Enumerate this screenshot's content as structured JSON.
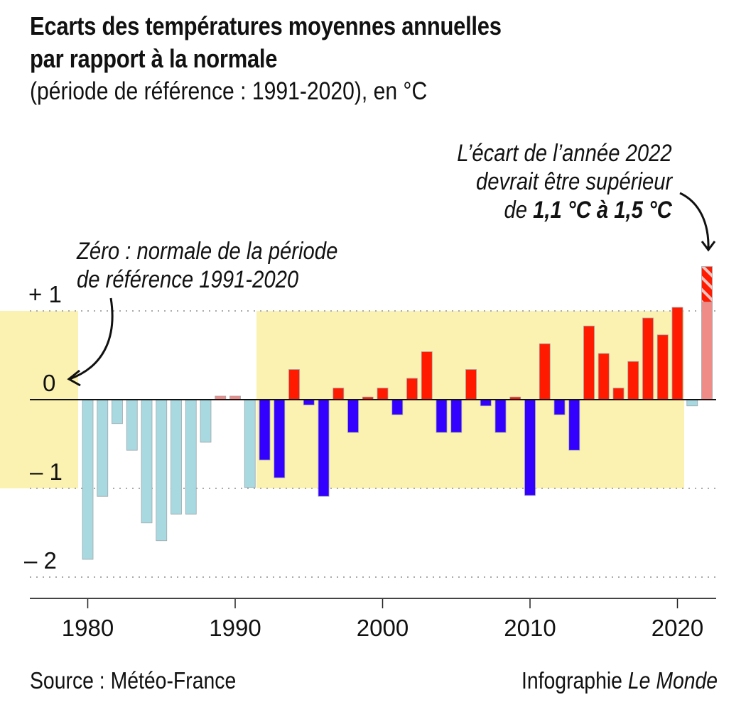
{
  "title_line1": "Ecarts des températures moyennes annuelles",
  "title_line2": "par rapport à la normale",
  "subtitle": "(période de référence : 1991-2020), en °C",
  "annotation_2022": {
    "line1": "L’écart de l’année 2022",
    "line2": "devrait être supérieur",
    "line3_prefix": "de ",
    "line3_bold": "1,1 °C à 1,5 °C"
  },
  "annotation_zero": {
    "line1": "Zéro : normale de la période",
    "line2": "de référence 1991-2020"
  },
  "footer": {
    "source": "Source : Météo-France",
    "credit_prefix": "Infographie ",
    "credit_brand": "Le Monde"
  },
  "colors": {
    "warm_reference": "#ff1a00",
    "cold_reference": "#3300ff",
    "warm_outside": "#f08c88",
    "cold_outside": "#a8d8e0",
    "reference_band": "#fbf1b0",
    "axis": "#111111",
    "grid": "#aaaaaa"
  },
  "chart_data": {
    "type": "bar",
    "title": "Ecarts des températures moyennes annuelles par rapport à la normale",
    "subtitle": "(période de référence : 1991-2020), en °C",
    "xlabel": "",
    "ylabel": "°C",
    "ylim": [
      -2.2,
      1.6
    ],
    "yticks": [
      {
        "value": 1,
        "label": "+ 1"
      },
      {
        "value": 0,
        "label": "0"
      },
      {
        "value": -1,
        "label": "– 1"
      },
      {
        "value": -2,
        "label": "– 2"
      }
    ],
    "xticks": [
      1980,
      1990,
      2000,
      2010,
      2020
    ],
    "grid": true,
    "reference_band": {
      "from_year": 1992,
      "to_year": 2020,
      "ymin": -1,
      "ymax": 1
    },
    "categories": [
      1980,
      1981,
      1982,
      1983,
      1984,
      1985,
      1986,
      1987,
      1988,
      1989,
      1990,
      1991,
      1992,
      1993,
      1994,
      1995,
      1996,
      1997,
      1998,
      1999,
      2000,
      2001,
      2002,
      2003,
      2004,
      2005,
      2006,
      2007,
      2008,
      2009,
      2010,
      2011,
      2012,
      2013,
      2014,
      2015,
      2016,
      2017,
      2018,
      2019,
      2020,
      2021,
      2022
    ],
    "values": [
      -1.8,
      -1.09,
      -0.27,
      -0.57,
      -1.39,
      -1.59,
      -1.29,
      -1.29,
      -0.48,
      0.04,
      0.04,
      -0.99,
      -0.68,
      -0.88,
      0.34,
      -0.06,
      -1.09,
      0.13,
      -0.37,
      0.03,
      0.13,
      -0.17,
      0.24,
      0.54,
      -0.37,
      -0.37,
      0.34,
      -0.07,
      -0.37,
      0.03,
      -1.08,
      0.63,
      -0.17,
      -0.57,
      0.83,
      0.52,
      0.13,
      0.43,
      0.92,
      0.73,
      1.04,
      -0.07,
      1.1
    ],
    "estimate_2022": {
      "year": 2022,
      "low": 1.1,
      "high": 1.5
    }
  }
}
